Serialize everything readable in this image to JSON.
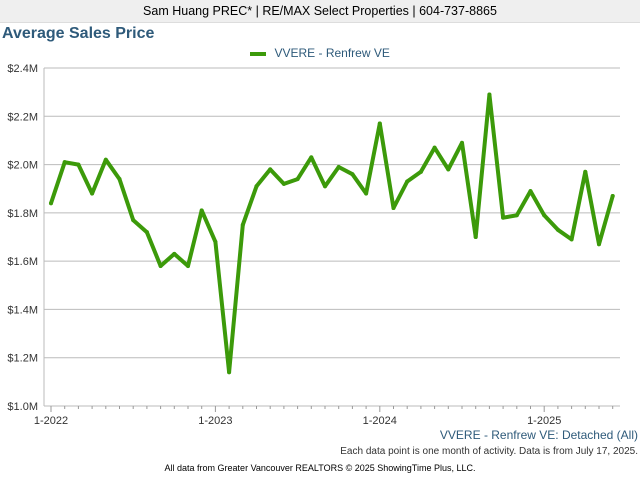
{
  "header": {
    "text": "Sam Huang PREC* | RE/MAX Select Properties | 604-737-8865"
  },
  "chart_data": {
    "type": "line",
    "title": "Average Sales Price",
    "xlabel": "",
    "ylabel": "",
    "ylim": [
      1.0,
      2.4
    ],
    "y_unit": "$M",
    "y_ticks": [
      "$1.0M",
      "$1.2M",
      "$1.4M",
      "$1.6M",
      "$1.8M",
      "$2.0M",
      "$2.2M",
      "$2.4M"
    ],
    "y_tick_values": [
      1.0,
      1.2,
      1.4,
      1.6,
      1.8,
      2.0,
      2.2,
      2.4
    ],
    "x_ticks": [
      "1-2022",
      "1-2023",
      "1-2024",
      "1-2025"
    ],
    "x_tick_index": [
      0,
      12,
      24,
      36
    ],
    "grid": true,
    "legend_position": "top-center",
    "series": [
      {
        "name": "VVERE - Renfrew VE",
        "color": "#3c9a0a",
        "x": [
          "2022-01",
          "2022-02",
          "2022-03",
          "2022-04",
          "2022-05",
          "2022-06",
          "2022-07",
          "2022-08",
          "2022-09",
          "2022-10",
          "2022-11",
          "2022-12",
          "2023-01",
          "2023-02",
          "2023-03",
          "2023-04",
          "2023-05",
          "2023-06",
          "2023-07",
          "2023-08",
          "2023-09",
          "2023-10",
          "2023-11",
          "2023-12",
          "2024-01",
          "2024-02",
          "2024-03",
          "2024-04",
          "2024-05",
          "2024-06",
          "2024-07",
          "2024-08",
          "2024-09",
          "2024-10",
          "2024-11",
          "2024-12",
          "2025-01",
          "2025-02",
          "2025-03",
          "2025-04",
          "2025-05",
          "2025-06"
        ],
        "values": [
          1.84,
          2.01,
          2.0,
          1.88,
          2.02,
          1.94,
          1.77,
          1.72,
          1.58,
          1.63,
          1.58,
          1.81,
          1.68,
          1.14,
          1.75,
          1.91,
          1.98,
          1.92,
          1.94,
          2.03,
          1.91,
          1.99,
          1.96,
          1.88,
          2.17,
          1.82,
          1.93,
          1.97,
          2.07,
          1.98,
          2.09,
          1.7,
          2.29,
          1.78,
          1.79,
          1.89,
          1.79,
          1.73,
          1.69,
          1.97,
          1.67,
          1.87
        ]
      }
    ]
  },
  "series_caption": "VVERE - Renfrew VE: Detached (All)",
  "note": "Each data point is one month of activity. Data is from July 17, 2025.",
  "footer": "All data from Greater Vancouver REALTORS © 2025 ShowingTime Plus, LLC."
}
